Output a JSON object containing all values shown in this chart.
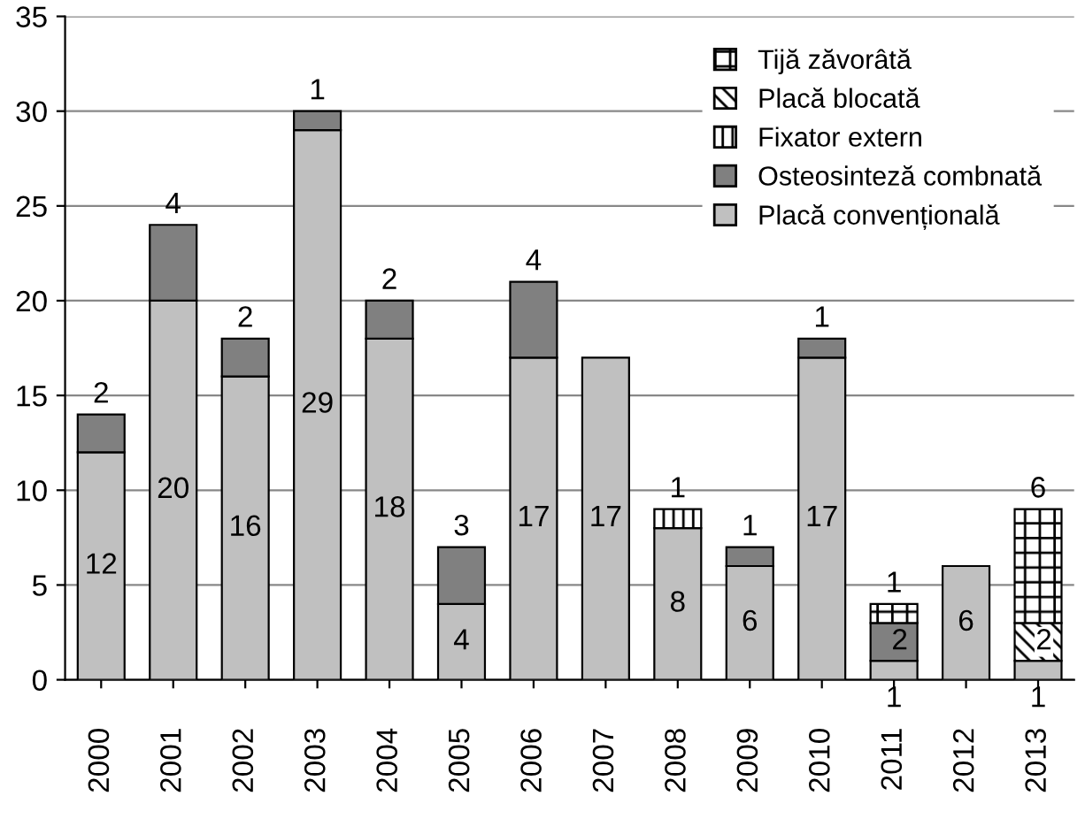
{
  "chart_data": {
    "type": "bar",
    "stacked": true,
    "categories": [
      "2000",
      "2001",
      "2002",
      "2003",
      "2004",
      "2005",
      "2006",
      "2007",
      "2008",
      "2009",
      "2010",
      "2011",
      "2012",
      "2013"
    ],
    "series": [
      {
        "name": "Placă convențională",
        "color": "#c0c0c0",
        "values": [
          12,
          20,
          16,
          29,
          18,
          4,
          17,
          17,
          8,
          6,
          17,
          1,
          6,
          1
        ],
        "value_labels": [
          "12",
          "20",
          "16",
          "29",
          "18",
          "4",
          "17",
          "17",
          "8",
          "6",
          "17",
          "1",
          "6",
          "1"
        ]
      },
      {
        "name": "Osteosinteză combnată",
        "color": "#808080",
        "values": [
          2,
          4,
          2,
          1,
          2,
          3,
          4,
          null,
          null,
          1,
          1,
          2,
          null,
          null
        ],
        "value_labels": [
          "2",
          "4",
          "2",
          "1",
          "2",
          "3",
          "4",
          null,
          null,
          "1",
          "1",
          "2",
          null,
          null
        ]
      },
      {
        "name": "Fixator extern",
        "color": "#000000",
        "values": [
          null,
          null,
          null,
          null,
          null,
          null,
          null,
          null,
          1,
          null,
          null,
          null,
          null,
          null
        ],
        "value_labels": [
          null,
          null,
          null,
          null,
          null,
          null,
          null,
          null,
          "1",
          null,
          null,
          null,
          null,
          null
        ]
      },
      {
        "name": "Placă blocată",
        "color": "#000000",
        "values": [
          null,
          null,
          null,
          null,
          null,
          null,
          null,
          null,
          null,
          null,
          null,
          null,
          null,
          2
        ],
        "value_labels": [
          null,
          null,
          null,
          null,
          null,
          null,
          null,
          null,
          null,
          null,
          null,
          null,
          null,
          "2"
        ]
      },
      {
        "name": "Tijă zăvorâtă",
        "color": "#000000",
        "values": [
          null,
          null,
          null,
          null,
          null,
          null,
          null,
          null,
          null,
          null,
          null,
          1,
          null,
          6
        ],
        "value_labels": [
          null,
          null,
          null,
          null,
          null,
          null,
          null,
          null,
          null,
          null,
          null,
          "1",
          null,
          "6"
        ]
      }
    ],
    "ylim": [
      0,
      35
    ],
    "yticks": [
      0,
      5,
      10,
      15,
      20,
      25,
      30,
      35
    ],
    "grid": "y",
    "legend": "top right"
  }
}
